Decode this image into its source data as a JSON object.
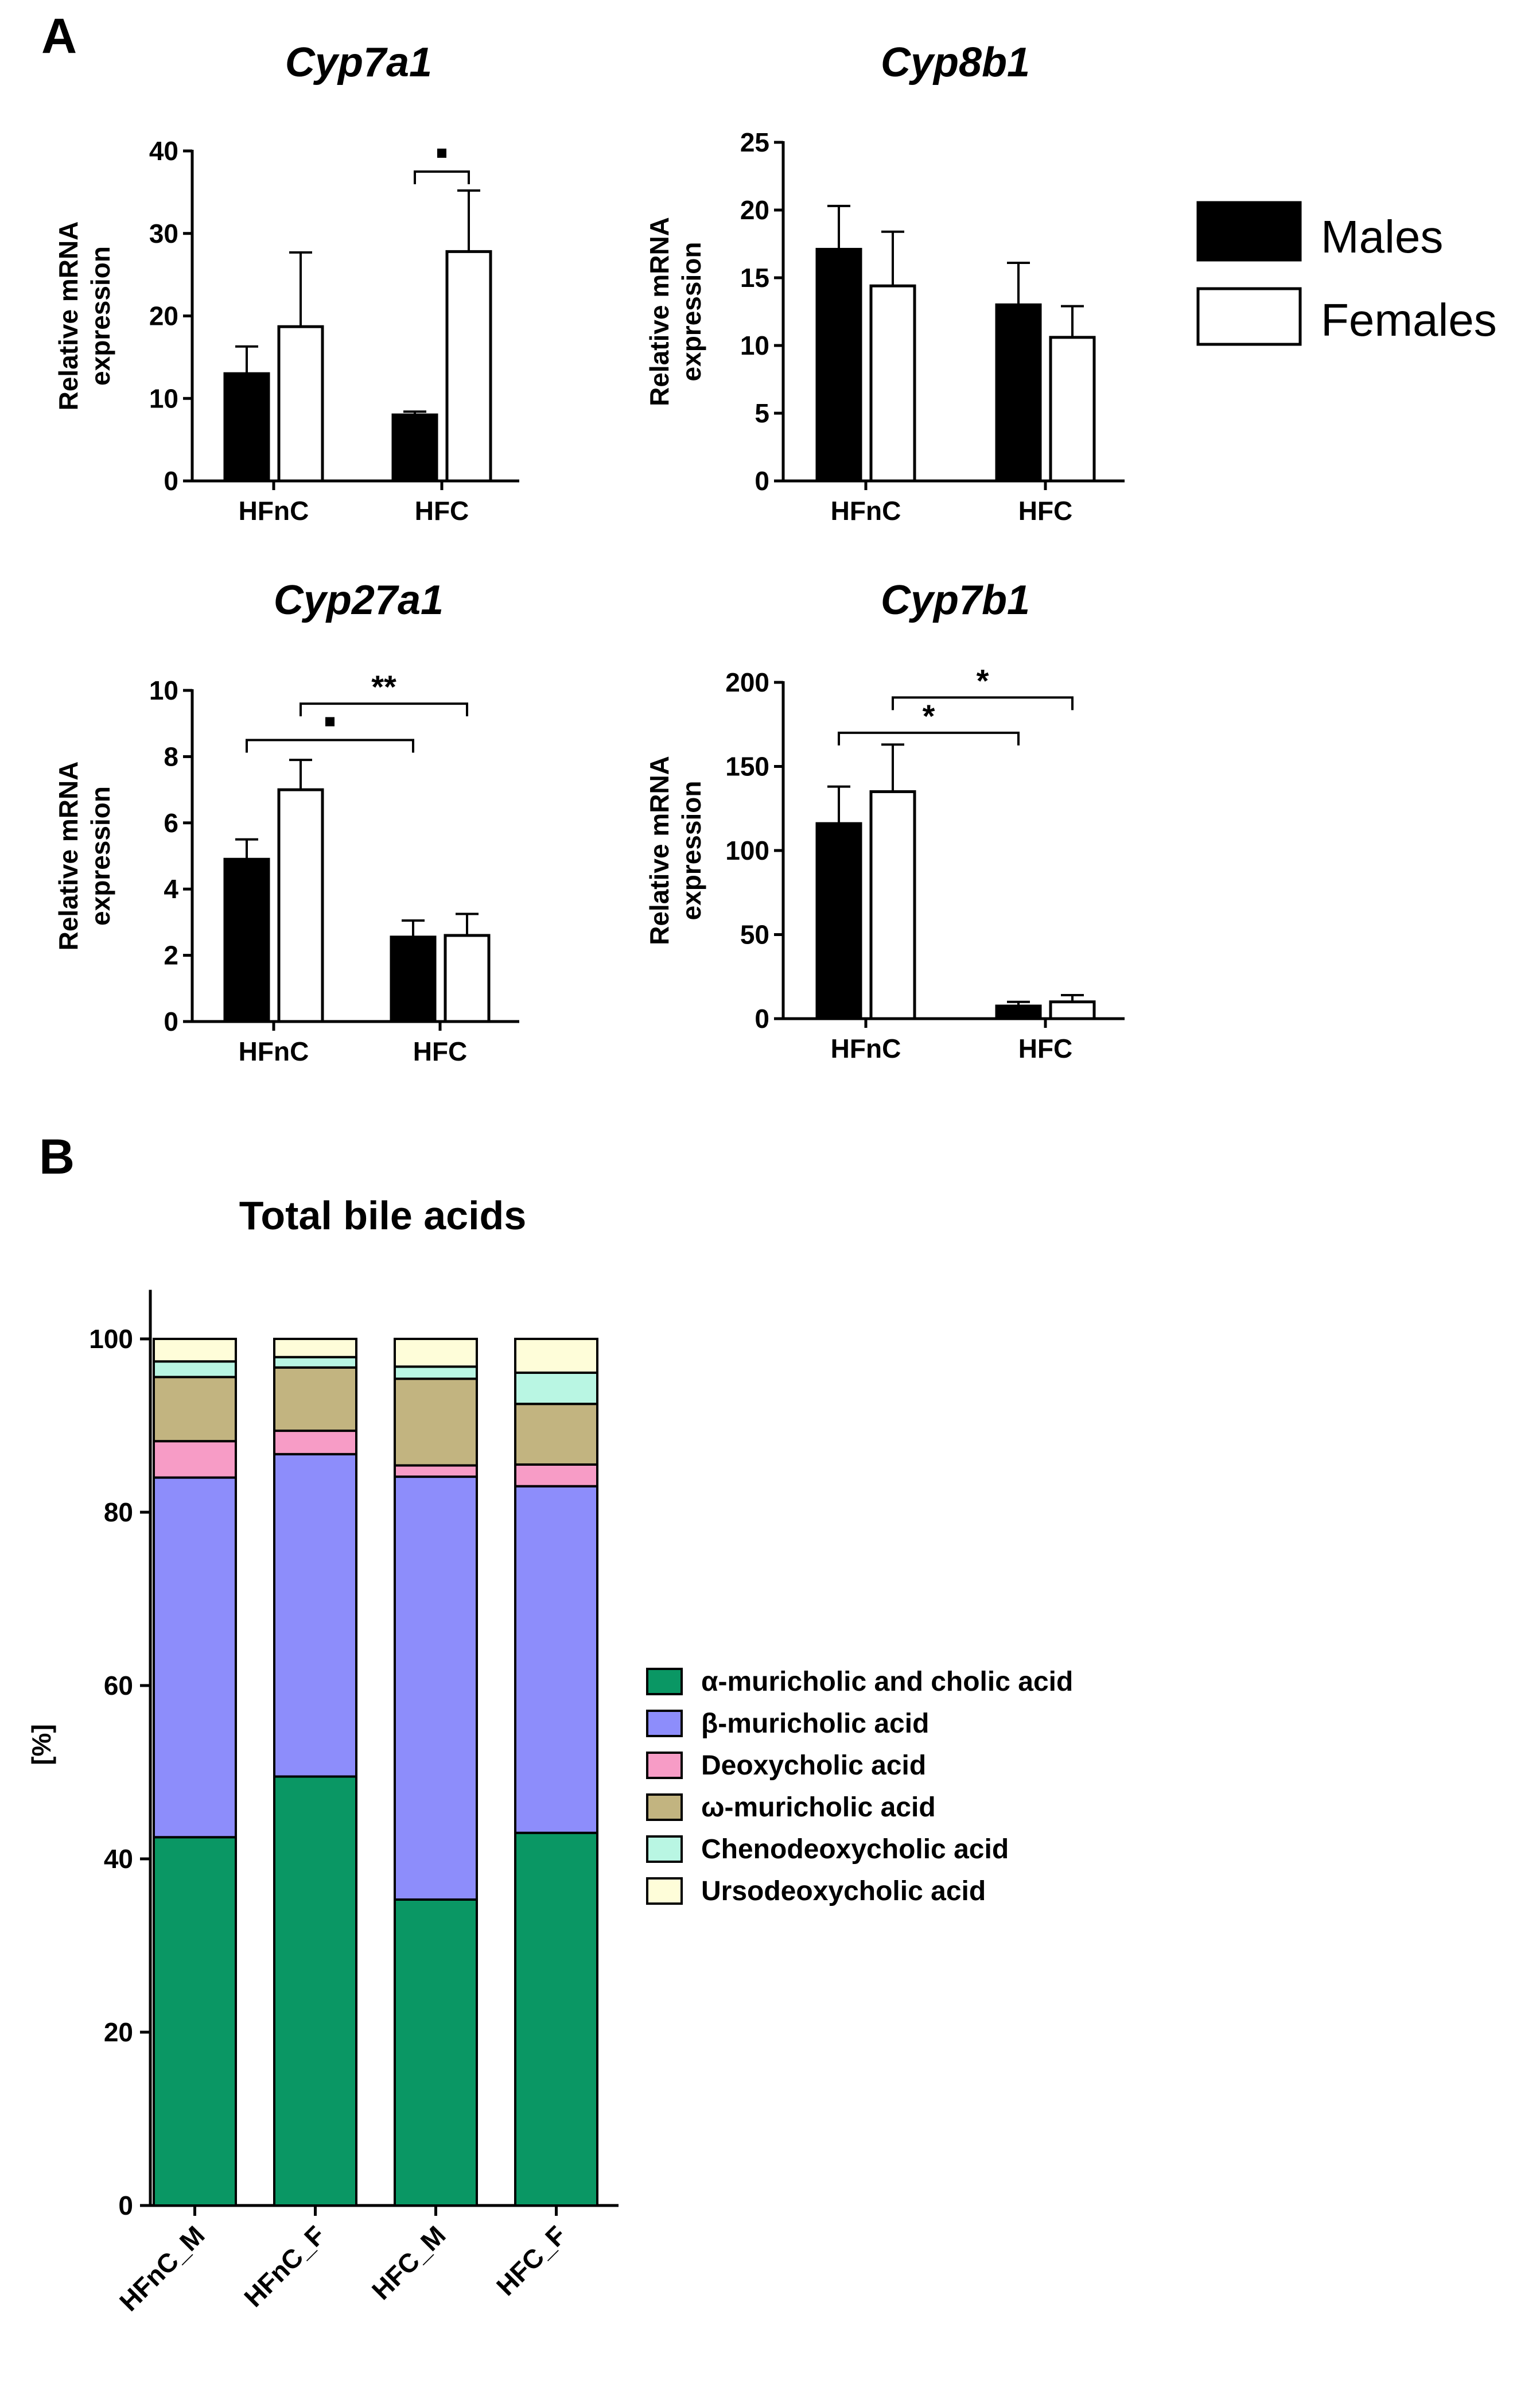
{
  "panel_labels": {
    "a": "A",
    "b": "B"
  },
  "colors": {
    "males": "#000000",
    "females": "#ffffff",
    "alpha_muricholic_cholic": "#0a9764",
    "beta_muricholic": "#8d8dfb",
    "deoxycholic": "#f79cc6",
    "omega_muricholic": "#c2b480",
    "chenodeoxycholic": "#b9f6e3",
    "ursodeoxycholic": "#fefdd9"
  },
  "legend_a": {
    "males": "Males",
    "females": "Females"
  },
  "chart_data": [
    {
      "type": "bar",
      "title": "Cyp7a1",
      "ylabel": "Relative mRNA expression",
      "ylabel_lines": [
        "Relative mRNA",
        "expression"
      ],
      "categories": [
        "HFnC",
        "HFC"
      ],
      "ylim": [
        0,
        40
      ],
      "yticks": [
        0,
        10,
        20,
        30,
        40
      ],
      "series": [
        {
          "name": "Males",
          "values": [
            13,
            8
          ],
          "errors": [
            3.3,
            0.4
          ]
        },
        {
          "name": "Females",
          "values": [
            18.7,
            27.8
          ],
          "errors": [
            9,
            7.4
          ]
        }
      ],
      "significance": [
        {
          "from": "HFC:Males",
          "to": "HFC:Females",
          "label": "·",
          "level": 37.5
        }
      ]
    },
    {
      "type": "bar",
      "title": "Cyp8b1",
      "ylabel": "Relative mRNA expression",
      "ylabel_lines": [
        "Relative mRNA",
        "expression"
      ],
      "categories": [
        "HFnC",
        "HFC"
      ],
      "ylim": [
        0,
        25
      ],
      "yticks": [
        0,
        5,
        10,
        15,
        20,
        25
      ],
      "series": [
        {
          "name": "Males",
          "values": [
            17.1,
            13
          ],
          "errors": [
            3.2,
            3.1
          ]
        },
        {
          "name": "Females",
          "values": [
            14.4,
            10.6
          ],
          "errors": [
            4,
            2.3
          ]
        }
      ],
      "significance": []
    },
    {
      "type": "bar",
      "title": "Cyp27a1",
      "ylabel": "Relative mRNA expression",
      "ylabel_lines": [
        "Relative mRNA",
        "expression"
      ],
      "categories": [
        "HFnC",
        "HFC"
      ],
      "ylim": [
        0,
        10
      ],
      "yticks": [
        0,
        2,
        4,
        6,
        8,
        10
      ],
      "series": [
        {
          "name": "Males",
          "values": [
            4.9,
            2.55
          ],
          "errors": [
            0.6,
            0.5
          ]
        },
        {
          "name": "Females",
          "values": [
            7.0,
            2.6
          ],
          "errors": [
            0.9,
            0.65
          ]
        }
      ],
      "significance": [
        {
          "from": "HFnC:Males",
          "to": "HFC:Males",
          "label": "·",
          "level": 8.5
        },
        {
          "from": "HFnC:Females",
          "to": "HFC:Females",
          "label": "**",
          "level": 9.6
        }
      ]
    },
    {
      "type": "bar",
      "title": "Cyp7b1",
      "ylabel": "Relative mRNA expression",
      "ylabel_lines": [
        "Relative mRNA",
        "expression"
      ],
      "categories": [
        "HFnC",
        "HFC"
      ],
      "ylim": [
        0,
        200
      ],
      "yticks": [
        0,
        50,
        100,
        150,
        200
      ],
      "series": [
        {
          "name": "Males",
          "values": [
            116,
            7.5
          ],
          "errors": [
            22,
            2.5
          ]
        },
        {
          "name": "Females",
          "values": [
            135,
            10
          ],
          "errors": [
            28,
            4
          ]
        }
      ],
      "significance": [
        {
          "from": "HFnC:Males",
          "to": "HFC:Males",
          "label": "*",
          "level": 170
        },
        {
          "from": "HFnC:Females",
          "to": "HFC:Females",
          "label": "*",
          "level": 191
        }
      ]
    },
    {
      "type": "bar",
      "stacked": true,
      "title": "Total bile acids",
      "ylabel": "[%]",
      "xlabel": "",
      "categories": [
        "HFnC_M",
        "HFnC_F",
        "HFC_M",
        "HFC_F"
      ],
      "ylim": [
        0,
        105
      ],
      "yticks": [
        0,
        20,
        40,
        60,
        80,
        100
      ],
      "series": [
        {
          "name": "α-muricholic and cholic acid",
          "values": [
            42.5,
            49.5,
            35.3,
            43
          ]
        },
        {
          "name": "β-muricholic acid",
          "values": [
            41.5,
            37.2,
            48.8,
            40
          ]
        },
        {
          "name": "Deoxycholic acid",
          "values": [
            4.2,
            2.7,
            1.3,
            2.5
          ]
        },
        {
          "name": "ω-muricholic acid",
          "values": [
            7.4,
            7.3,
            10,
            7
          ]
        },
        {
          "name": "Chenodeoxycholic acid",
          "values": [
            1.8,
            1.2,
            1.4,
            3.6
          ]
        },
        {
          "name": "Ursodeoxycholic acid",
          "values": [
            2.6,
            2.1,
            3.2,
            3.9
          ]
        }
      ],
      "legend_position": "right"
    }
  ]
}
